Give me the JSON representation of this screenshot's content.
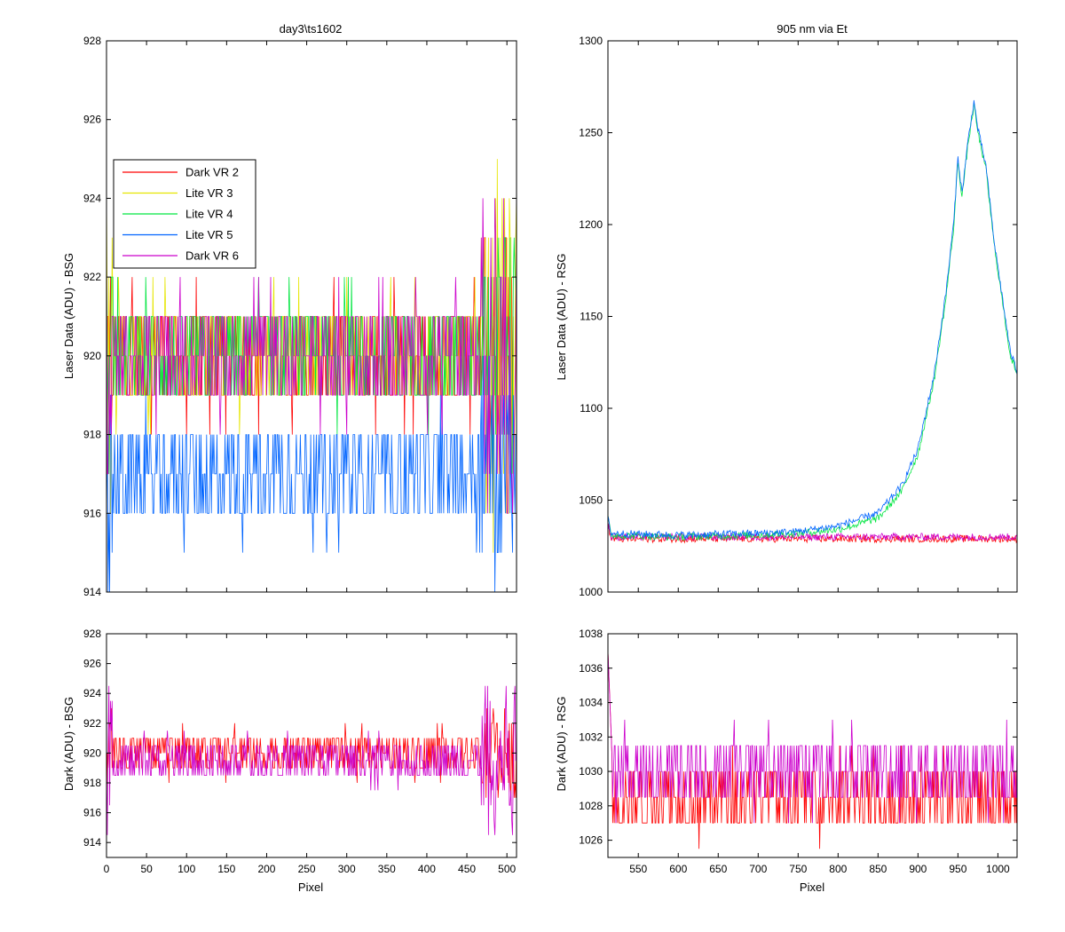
{
  "chart_data": [
    {
      "id": "laser_bsg",
      "type": "line",
      "title": "day3\\ts1602",
      "xlabel": "",
      "ylabel": "Laser Data (ADU) - BSG",
      "xlim": [
        0,
        512
      ],
      "ylim": [
        914,
        928
      ],
      "yticks": [
        914,
        916,
        918,
        920,
        922,
        924,
        926,
        928
      ],
      "xticks": [
        0,
        50,
        100,
        150,
        200,
        250,
        300,
        350,
        400,
        450,
        500
      ],
      "xticklabels_visible": false,
      "grid": false,
      "legend": {
        "placement": "upper-left",
        "entries": [
          "Dark VR 2",
          "Lite VR 3",
          "Lite VR 4",
          "Lite VR 5",
          "Dark VR 6"
        ]
      },
      "series": [
        {
          "name": "Dark VR 2",
          "color": "#ff0000",
          "x_range": [
            0,
            512
          ],
          "base": 920,
          "spread": 1,
          "edge_noise": 3
        },
        {
          "name": "Lite VR 3",
          "color": "#e6e600",
          "x_range": [
            0,
            512
          ],
          "base": 920,
          "spread": 1,
          "edge_noise": 5
        },
        {
          "name": "Lite VR 4",
          "color": "#00e640",
          "x_range": [
            0,
            512
          ],
          "base": 920,
          "spread": 1,
          "edge_noise": 3
        },
        {
          "name": "Lite VR 5",
          "color": "#0064ff",
          "x_range": [
            0,
            512
          ],
          "base": 917,
          "spread": 1,
          "edge_noise": 3
        },
        {
          "name": "Dark VR 6",
          "color": "#cc00cc",
          "x_range": [
            0,
            512
          ],
          "base": 920,
          "spread": 1,
          "edge_noise": 4
        }
      ]
    },
    {
      "id": "laser_rsg",
      "type": "line",
      "title": "905 nm via Et",
      "xlabel": "",
      "ylabel": "Laser Data (ADU) - RSG",
      "xlim": [
        512,
        1024
      ],
      "ylim": [
        1000,
        1300
      ],
      "yticks": [
        1000,
        1050,
        1100,
        1150,
        1200,
        1250,
        1300
      ],
      "xticks": [
        550,
        600,
        650,
        700,
        750,
        800,
        850,
        900,
        950,
        1000
      ],
      "xticklabels_visible": false,
      "grid": false,
      "series": [
        {
          "name": "Dark VR 2",
          "color": "#ff0000",
          "flat": 1029,
          "noise": 2
        },
        {
          "name": "Dark VR 6",
          "color": "#cc00cc",
          "flat": 1030,
          "noise": 2
        },
        {
          "name": "Lite VR 4",
          "color": "#00e640",
          "noise": 2,
          "profile": [
            [
              512,
              1040
            ],
            [
              516,
              1031
            ],
            [
              600,
              1030
            ],
            [
              700,
              1031
            ],
            [
              750,
              1032
            ],
            [
              800,
              1034
            ],
            [
              850,
              1040
            ],
            [
              880,
              1055
            ],
            [
              900,
              1075
            ],
            [
              920,
              1115
            ],
            [
              935,
              1160
            ],
            [
              945,
              1200
            ],
            [
              950,
              1235
            ],
            [
              955,
              1215
            ],
            [
              963,
              1245
            ],
            [
              970,
              1265
            ],
            [
              975,
              1250
            ],
            [
              985,
              1230
            ],
            [
              995,
              1190
            ],
            [
              1005,
              1160
            ],
            [
              1015,
              1130
            ],
            [
              1024,
              1118
            ]
          ]
        },
        {
          "name": "Lite VR 5",
          "color": "#0064ff",
          "noise": 2,
          "profile": [
            [
              512,
              1040
            ],
            [
              516,
              1032
            ],
            [
              600,
              1031
            ],
            [
              700,
              1032
            ],
            [
              750,
              1033
            ],
            [
              800,
              1036
            ],
            [
              850,
              1043
            ],
            [
              880,
              1058
            ],
            [
              900,
              1078
            ],
            [
              920,
              1118
            ],
            [
              935,
              1163
            ],
            [
              945,
              1203
            ],
            [
              950,
              1237
            ],
            [
              955,
              1217
            ],
            [
              963,
              1247
            ],
            [
              970,
              1267
            ],
            [
              975,
              1252
            ],
            [
              985,
              1232
            ],
            [
              995,
              1192
            ],
            [
              1005,
              1162
            ],
            [
              1015,
              1132
            ],
            [
              1024,
              1120
            ]
          ]
        }
      ]
    },
    {
      "id": "dark_bsg",
      "type": "line",
      "title": "",
      "xlabel": "Pixel",
      "ylabel": "Dark (ADU) - BSG",
      "xlim": [
        0,
        512
      ],
      "ylim": [
        913,
        928
      ],
      "yticks": [
        914,
        916,
        918,
        920,
        922,
        924,
        926,
        928
      ],
      "xticks": [
        0,
        50,
        100,
        150,
        200,
        250,
        300,
        350,
        400,
        450,
        500
      ],
      "xticklabels_visible": true,
      "grid": false,
      "series": [
        {
          "name": "Dark VR 2",
          "color": "#ff0000",
          "base": 920,
          "spread": 1,
          "edge_noise": 3
        },
        {
          "name": "Dark VR 6",
          "color": "#cc00cc",
          "base": 919.5,
          "spread": 1,
          "edge_noise": 5
        }
      ]
    },
    {
      "id": "dark_rsg",
      "type": "line",
      "title": "",
      "xlabel": "Pixel",
      "ylabel": "Dark (ADU) - RSG",
      "xlim": [
        512,
        1024
      ],
      "ylim": [
        1025,
        1038
      ],
      "yticks": [
        1026,
        1028,
        1030,
        1032,
        1034,
        1036,
        1038
      ],
      "xticks": [
        550,
        600,
        650,
        700,
        750,
        800,
        850,
        900,
        950,
        1000
      ],
      "xticklabels_visible": true,
      "grid": false,
      "series": [
        {
          "name": "Dark VR 2",
          "color": "#ff0000",
          "base": 1028.5,
          "spread": 1.5
        },
        {
          "name": "Dark VR 6",
          "color": "#cc00cc",
          "base": 1030,
          "spread": 1.5
        }
      ]
    }
  ]
}
